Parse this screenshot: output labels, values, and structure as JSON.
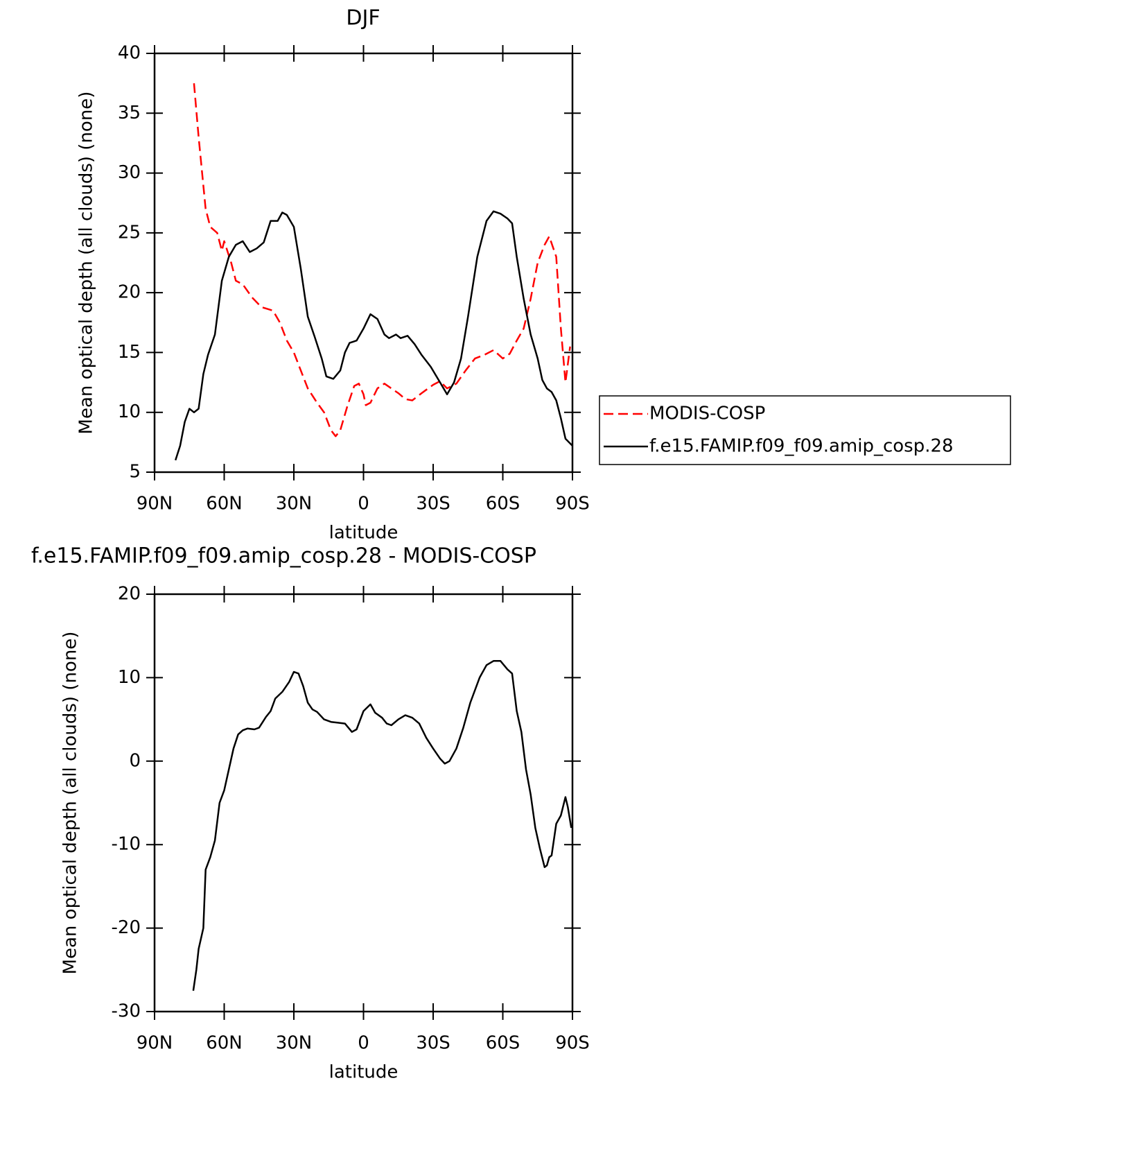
{
  "chart_data": [
    {
      "type": "line",
      "title": "DJF",
      "ylabel": "Mean optical depth (all clouds) (none)",
      "xlabel": "latitude",
      "xlim": [
        90,
        -90
      ],
      "ylim": [
        5,
        40
      ],
      "xticks": [
        {
          "value": 90,
          "label": "90N"
        },
        {
          "value": 60,
          "label": "60N"
        },
        {
          "value": 30,
          "label": "30N"
        },
        0,
        {
          "value": -30,
          "label": "30S"
        },
        {
          "value": -60,
          "label": "60S"
        },
        {
          "value": -90,
          "label": "90S"
        }
      ],
      "yticks": [
        5,
        10,
        15,
        20,
        25,
        30,
        35,
        40
      ],
      "legend": "right",
      "series": [
        {
          "name": "MODIS-COSP",
          "color": "#ff0000",
          "dash": true,
          "x": [
            73,
            71,
            68,
            66,
            63,
            61,
            60,
            57,
            55,
            52,
            48,
            44,
            39,
            36,
            33,
            30,
            27,
            24,
            20,
            17,
            14,
            12,
            10,
            7,
            4,
            2,
            0,
            -1,
            -3,
            -6,
            -9,
            -12,
            -15,
            -18,
            -21,
            -25,
            -30,
            -33,
            -36,
            -40,
            -44,
            -48,
            -52,
            -56,
            -60,
            -63,
            -66,
            -69,
            -72,
            -75,
            -78,
            -80,
            -83,
            -85,
            -87,
            -89
          ],
          "values": [
            37.5,
            33,
            27,
            25.5,
            25,
            23.5,
            24.3,
            22.5,
            21,
            20.7,
            19.6,
            18.8,
            18.5,
            17.5,
            16,
            15,
            13.5,
            12,
            10.8,
            10,
            8.5,
            8,
            8.5,
            10.5,
            12.2,
            12.4,
            11.5,
            10.6,
            10.8,
            12,
            12.4,
            12,
            11.6,
            11.1,
            11,
            11.6,
            12.3,
            12.6,
            12,
            12.4,
            13.5,
            14.5,
            14.8,
            15.2,
            14.5,
            14.9,
            16,
            17,
            19.5,
            22.5,
            24,
            24.7,
            23,
            17,
            12.5,
            15.5
          ]
        },
        {
          "name": "f.e15.FAMIP.f09_f09.amip_cosp.28",
          "color": "#000000",
          "dash": false,
          "x": [
            81,
            79,
            77,
            75,
            73,
            71,
            69,
            67,
            64,
            61,
            58,
            55,
            52,
            49,
            46,
            43,
            40,
            37,
            35,
            33,
            30,
            27,
            24,
            21,
            18,
            16,
            13,
            10,
            8,
            6,
            3,
            0,
            -3,
            -6,
            -9,
            -11,
            -14,
            -16,
            -19,
            -22,
            -25,
            -29,
            -33,
            -36,
            -39,
            -42,
            -45,
            -49,
            -53,
            -56,
            -59,
            -62,
            -64,
            -66,
            -69,
            -72,
            -75,
            -77,
            -79,
            -81,
            -83,
            -85,
            -87,
            -90
          ],
          "values": [
            6,
            7.2,
            9.2,
            10.3,
            10,
            10.3,
            13.2,
            14.8,
            16.5,
            21,
            23,
            24,
            24.3,
            23.4,
            23.7,
            24.2,
            26,
            26,
            26.7,
            26.5,
            25.5,
            22,
            18,
            16.3,
            14.5,
            13,
            12.8,
            13.5,
            15,
            15.8,
            16,
            17,
            18.2,
            17.8,
            16.5,
            16.2,
            16.5,
            16.2,
            16.4,
            15.7,
            14.8,
            13.8,
            12.5,
            11.5,
            12.5,
            14.5,
            18,
            23,
            26,
            26.8,
            26.6,
            26.2,
            25.8,
            23,
            19.5,
            16.5,
            14.5,
            12.7,
            12,
            11.7,
            11,
            9.5,
            7.8,
            7.2
          ]
        }
      ]
    },
    {
      "type": "line",
      "title": "f.e15.FAMIP.f09_f09.amip_cosp.28 - MODIS-COSP",
      "ylabel": "Mean optical depth (all clouds) (none)",
      "xlabel": "latitude",
      "xlim": [
        90,
        -90
      ],
      "ylim": [
        -30,
        20
      ],
      "xticks": [
        {
          "value": 90,
          "label": "90N"
        },
        {
          "value": 60,
          "label": "60N"
        },
        {
          "value": 30,
          "label": "30N"
        },
        0,
        {
          "value": -30,
          "label": "30S"
        },
        {
          "value": -60,
          "label": "60S"
        },
        {
          "value": -90,
          "label": "90S"
        }
      ],
      "yticks": [
        -30,
        -20,
        -10,
        0,
        10,
        20
      ],
      "series": [
        {
          "color": "#000000",
          "dash": false,
          "x": [
            73.3,
            72,
            71,
            69,
            68,
            66,
            64,
            62,
            60,
            58,
            56,
            54,
            52,
            50,
            47,
            45,
            42,
            40,
            38,
            35,
            32,
            30,
            28,
            26,
            24,
            22,
            20,
            17,
            14,
            11,
            8,
            5,
            3,
            0,
            -3,
            -5,
            -8,
            -10,
            -12,
            -15,
            -18,
            -21,
            -24,
            -27,
            -30,
            -33,
            -35,
            -37,
            -40,
            -43,
            -46,
            -50,
            -53,
            -56,
            -59,
            -62,
            -64,
            -66,
            -68,
            -70,
            -72,
            -74,
            -76,
            -78,
            -79,
            -80,
            -81,
            -83,
            -85,
            -87,
            -88,
            -89.5
          ],
          "values": [
            -27.5,
            -25,
            -22.5,
            -20,
            -13,
            -11.5,
            -9.5,
            -5,
            -3.5,
            -1,
            1.5,
            3.2,
            3.7,
            3.9,
            3.8,
            4,
            5.3,
            6,
            7.5,
            8.3,
            9.5,
            10.7,
            10.5,
            9,
            7,
            6.2,
            5.9,
            5,
            4.7,
            4.6,
            4.5,
            3.5,
            3.8,
            6,
            6.8,
            5.8,
            5.2,
            4.5,
            4.3,
            5,
            5.5,
            5.2,
            4.5,
            2.8,
            1.5,
            0.3,
            -0.3,
            0,
            1.5,
            4,
            7,
            10,
            11.5,
            12,
            12,
            11,
            10.5,
            6,
            3.5,
            -1,
            -4,
            -8,
            -10.5,
            -12.7,
            -12.5,
            -11.5,
            -11.3,
            -7.5,
            -6.5,
            -4.3,
            -5.5,
            -8
          ]
        }
      ]
    }
  ]
}
